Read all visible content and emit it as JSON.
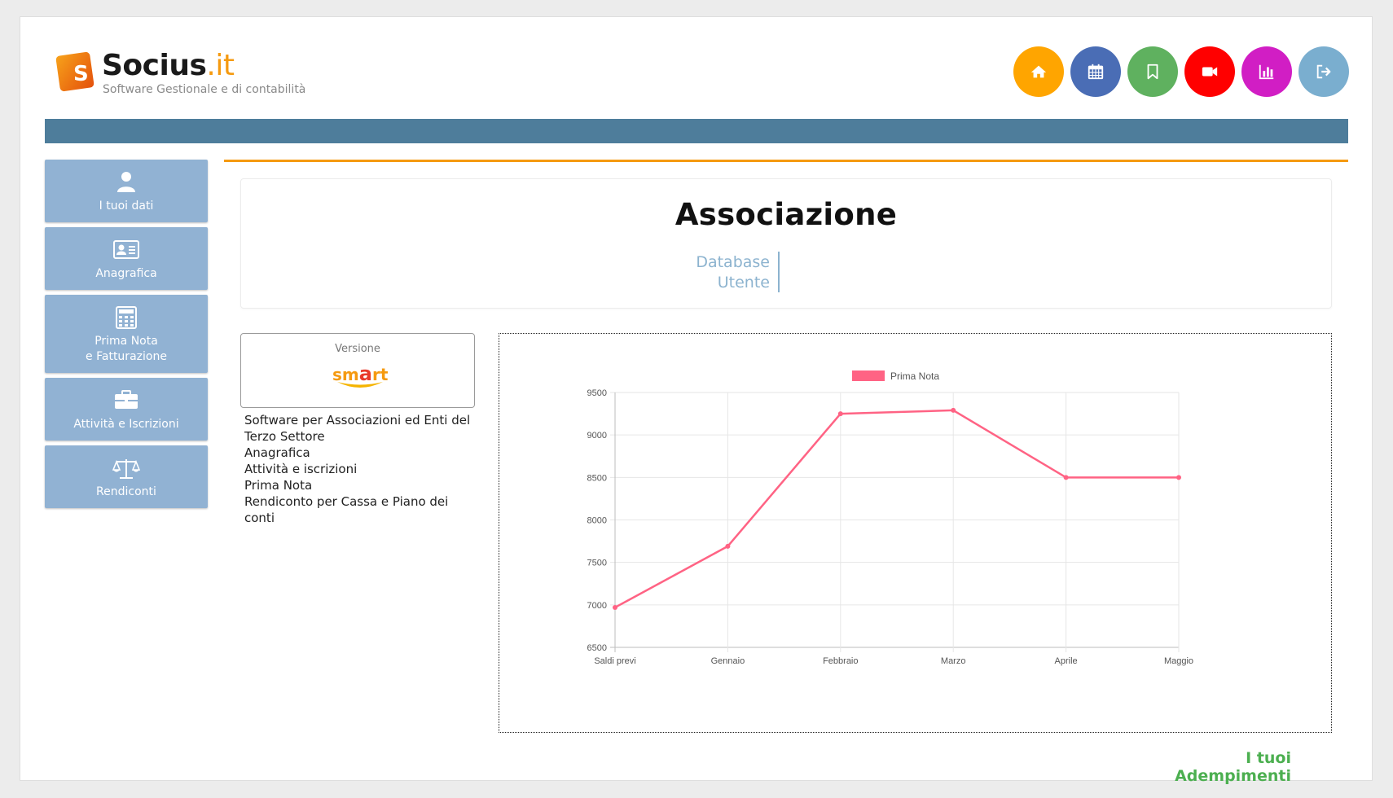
{
  "header": {
    "brand_name": "Socius",
    "brand_tld": ".it",
    "brand_tagline": "Software Gestionale e di contabilità",
    "logo_letter": "S",
    "logo_color": "#f58a0b",
    "icon_buttons": [
      {
        "icon": "home-icon",
        "color": "#ffa500"
      },
      {
        "icon": "calendar-icon",
        "color": "#4a6db5"
      },
      {
        "icon": "bookmark-icon",
        "color": "#5fb15f"
      },
      {
        "icon": "video-camera-icon",
        "color": "#ff0000"
      },
      {
        "icon": "bar-chart-icon",
        "color": "#d11ec4"
      },
      {
        "icon": "logout-icon",
        "color": "#7aaecf"
      }
    ]
  },
  "sidebar": {
    "items": [
      {
        "label": "I tuoi dati",
        "icon": "user-icon"
      },
      {
        "label": "Anagrafica",
        "icon": "id-card-icon"
      },
      {
        "label": "Prima Nota\ne Fatturazione",
        "icon": "calculator-icon"
      },
      {
        "label": "Attività e Iscrizioni",
        "icon": "briefcase-icon"
      },
      {
        "label": "Rendiconti",
        "icon": "balance-scale-icon"
      }
    ]
  },
  "main": {
    "title": "Associazione",
    "database_label_1": "Database",
    "database_label_2": "Utente",
    "version": {
      "label": "Versione",
      "logo_text_1": "sm",
      "logo_text_2": "a",
      "logo_text_3": "rt"
    },
    "features": [
      "Software per Associazioni ed Enti del Terzo Settore",
      "Anagrafica",
      "Attività e iscrizioni",
      "Prima Nota",
      "Rendiconto per Cassa e Piano dei conti"
    ],
    "adempimenti_link": "I tuoi Adempimenti"
  },
  "colors": {
    "header_bar": "#4e7d9b",
    "accent_line": "#f59a10",
    "sidebar_bg": "#91b2d3",
    "series_line": "#ff6384"
  },
  "chart_data": {
    "type": "line",
    "categories": [
      "Saldi previ",
      "Gennaio",
      "Febbraio",
      "Marzo",
      "Aprile",
      "Maggio"
    ],
    "series": [
      {
        "name": "Prima Nota",
        "values": [
          6970,
          7690,
          9250,
          9290,
          8500,
          8500
        ]
      }
    ],
    "ylim": [
      6500,
      9500
    ],
    "yticks": [
      6500,
      7000,
      7500,
      8000,
      8500,
      9000,
      9500
    ],
    "grid": true,
    "legend": "top-center"
  }
}
